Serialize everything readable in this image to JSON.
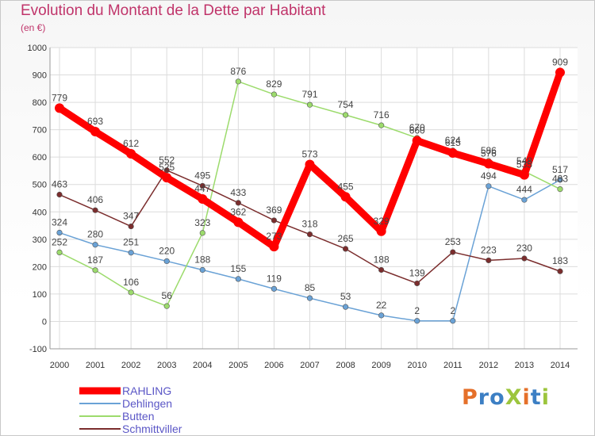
{
  "header": {
    "title": "Evolution du Montant de la Dette par Habitant",
    "unit": "(en €)"
  },
  "logo": {
    "text": "ProXiti",
    "colors": [
      "#e5702a",
      "#3c7fc4",
      "#3c7fc4",
      "#9cc53d",
      "#e5702a",
      "#3c7fc4",
      "#9cc53d"
    ]
  },
  "chart_data": {
    "type": "line",
    "title": "Evolution du Montant de la Dette par Habitant",
    "ylabel": "(en €)",
    "xlabel": "",
    "x": [
      "2000",
      "2001",
      "2002",
      "2003",
      "2004",
      "2005",
      "2006",
      "2007",
      "2008",
      "2009",
      "2010",
      "2011",
      "2012",
      "2013",
      "2014"
    ],
    "ylim": [
      -100,
      1000
    ],
    "yticks": [
      "-100",
      "0",
      "100",
      "200",
      "300",
      "400",
      "500",
      "600",
      "700",
      "800",
      "900",
      "1000"
    ],
    "grid": true,
    "legend_position": "bottom-left",
    "series": [
      {
        "name": "RAHLING",
        "color": "#ff0000",
        "values": [
          779,
          693,
          612,
          525,
          447,
          362,
          273,
          573,
          455,
          329,
          660,
          615,
          576,
          535,
          909
        ],
        "labels": [
          "779",
          "693",
          "612",
          "525",
          "447",
          "362",
          "273",
          "573",
          "455",
          "329",
          "660",
          "615",
          "576",
          "535",
          "909"
        ]
      },
      {
        "name": "Dehlingen",
        "color": "#6aa2d6",
        "values": [
          324,
          280,
          251,
          220,
          188,
          155,
          119,
          85,
          53,
          22,
          2,
          2,
          494,
          444,
          517
        ],
        "labels": [
          "324",
          "280",
          "251",
          "220",
          "188",
          "155",
          "119",
          "85",
          "53",
          "22",
          "2",
          "2",
          "494",
          "444",
          "517"
        ]
      },
      {
        "name": "Butten",
        "color": "#9cdb6c",
        "values": [
          252,
          187,
          106,
          56,
          323,
          876,
          829,
          791,
          754,
          716,
          670,
          624,
          586,
          548,
          483
        ],
        "labels": [
          "252",
          "187",
          "106",
          "56",
          "323",
          "876",
          "829",
          "791",
          "754",
          "716",
          "670",
          "624",
          "586",
          "548",
          "483"
        ]
      },
      {
        "name": "Schmittviller",
        "color": "#7b2d2d",
        "values": [
          463,
          406,
          347,
          552,
          495,
          433,
          369,
          318,
          265,
          188,
          139,
          253,
          223,
          230,
          183
        ],
        "labels": [
          "463",
          "406",
          "347",
          "552",
          "495",
          "433",
          "369",
          "318",
          "265",
          "188",
          "139",
          "253",
          "223",
          "230",
          "183"
        ]
      }
    ]
  }
}
